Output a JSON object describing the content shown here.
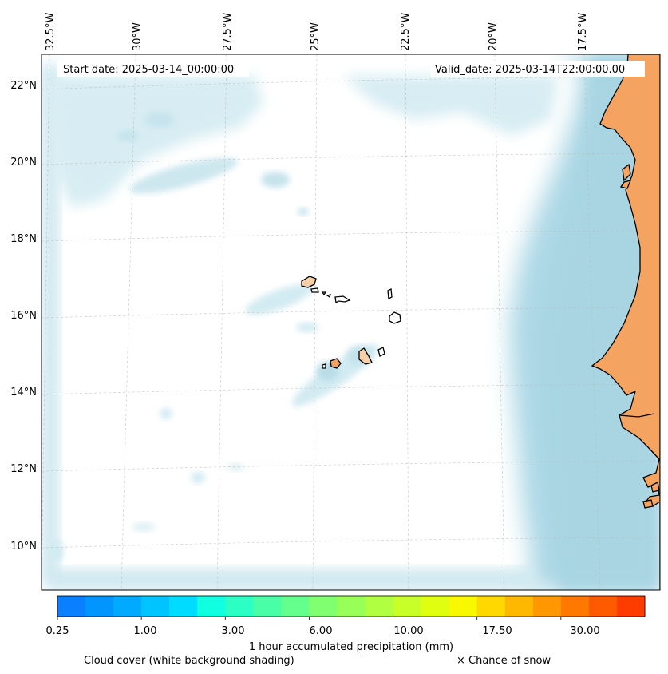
{
  "map": {
    "start_date": "Start date: 2025-03-14_00:00:00",
    "valid_date": "Valid_date: 2025-03-14T22:00:00.00",
    "lon_labels": [
      "32.5°W",
      "30°W",
      "27.5°W",
      "25°W",
      "22.5°W",
      "20°W",
      "17.5°W"
    ],
    "lat_labels": [
      "22°N",
      "20°N",
      "18°N",
      "16°N",
      "14°N",
      "12°N",
      "10°N"
    ],
    "colors": {
      "land": "#f4a460",
      "cloud": "#add8e6",
      "island": "#f9cfa8"
    }
  },
  "colorbar": {
    "colors": [
      "#0a7fff",
      "#0095ff",
      "#00aaff",
      "#00c4ff",
      "#00dcff",
      "#10ffe0",
      "#2cffc4",
      "#48ffa8",
      "#64ff8c",
      "#80ff70",
      "#98ff58",
      "#b0ff40",
      "#c8ff28",
      "#e0ff10",
      "#f8f800",
      "#ffd800",
      "#ffb800",
      "#ff9800",
      "#ff7800",
      "#ff5a00",
      "#ff3c00"
    ],
    "tick_labels": [
      "0.25",
      "1.00",
      "3.00",
      "6.00",
      "10.00",
      "17.50",
      "30.00"
    ],
    "label": "1 hour accumulated precipitation (mm)"
  },
  "legend": {
    "cloud_cover": "Cloud cover (white background shading)",
    "snow": "× Chance of snow"
  }
}
